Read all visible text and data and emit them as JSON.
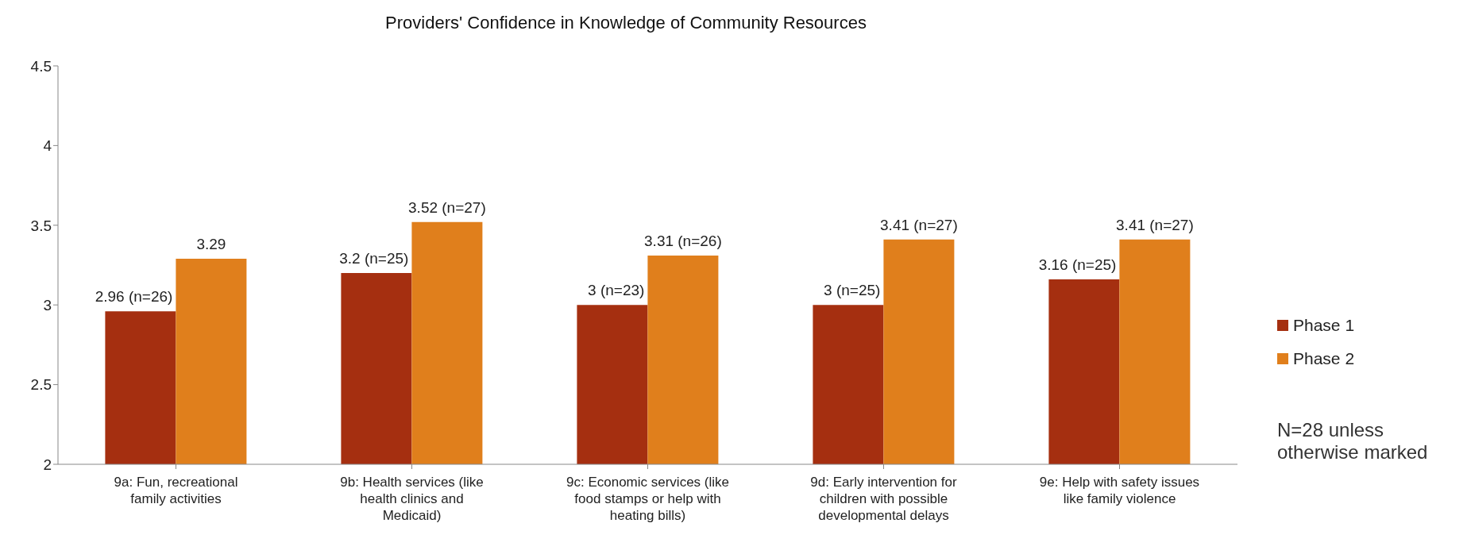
{
  "chart_data": {
    "type": "bar",
    "title": "Providers' Confidence in Knowledge of Community Resources",
    "categories": [
      "9a: Fun, recreational family activities",
      "9b: Health services (like health clinics and Medicaid)",
      "9c: Economic services (like food stamps or help with heating bills)",
      "9d: Early intervention for children with possible developmental delays",
      "9e: Help with safety issues like family violence"
    ],
    "series": [
      {
        "name": "Phase 1",
        "color": "#a52f10",
        "values": [
          2.96,
          3.2,
          3,
          3,
          3.16
        ],
        "value_labels": [
          "2.96 (n=26)",
          "3.2 (n=25)",
          "3 (n=23)",
          "3 (n=25)",
          "3.16 (n=25)"
        ]
      },
      {
        "name": "Phase 2",
        "color": "#e07f1c",
        "values": [
          3.29,
          3.52,
          3.31,
          3.41,
          3.41
        ],
        "value_labels": [
          "3.29",
          "3.52 (n=27)",
          "3.31 (n=26)",
          "3.41 (n=27)",
          "3.41 (n=27)"
        ]
      }
    ],
    "ylim": [
      2,
      4.5
    ],
    "yticks": [
      2,
      2.5,
      3,
      3.5,
      4,
      4.5
    ],
    "grid": false,
    "legend": "right",
    "annotations": [
      "N=28 unless otherwise marked"
    ]
  }
}
